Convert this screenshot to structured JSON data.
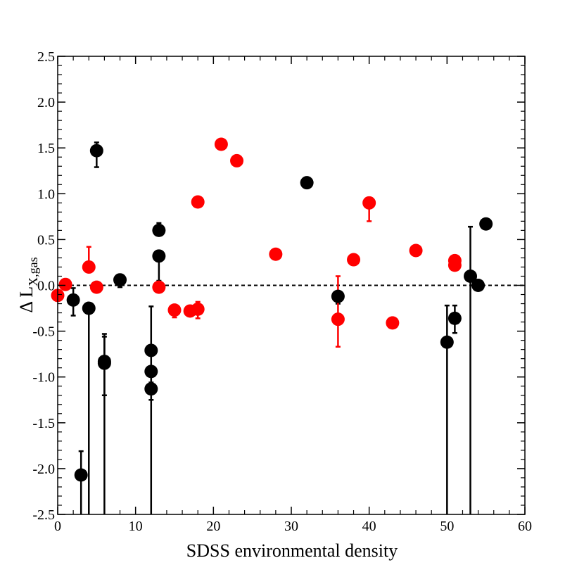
{
  "chart_data": {
    "type": "scatter",
    "title": "",
    "xlabel": "SDSS environmental density",
    "ylabel": {
      "prefix": "Δ L",
      "subscript": "X,gas"
    },
    "xlim": [
      0,
      60
    ],
    "ylim": [
      -2.5,
      2.5
    ],
    "x_ticks": [
      0,
      10,
      20,
      30,
      40,
      50,
      60
    ],
    "x_tick_labels": [
      "0",
      "10",
      "20",
      "30",
      "40",
      "50",
      "60"
    ],
    "y_ticks": [
      -2.5,
      -2.0,
      -1.5,
      -1.0,
      -0.5,
      0.0,
      0.5,
      1.0,
      1.5,
      2.0,
      2.5
    ],
    "y_tick_labels": [
      "-2.5",
      "-2.0",
      "-1.5",
      "-1.0",
      "-0.5",
      "0.0",
      "0.5",
      "1.0",
      "1.5",
      "2.0",
      "2.5"
    ],
    "reference_line": {
      "y": 0.0,
      "style": "dashed"
    },
    "series": [
      {
        "name": "black",
        "color": "#000000",
        "points": [
          {
            "x": 2,
            "y": -0.16,
            "err_low": -0.33,
            "err_high": -0.03
          },
          {
            "x": 3,
            "y": -2.07,
            "err_low": -2.5,
            "err_high": -1.81
          },
          {
            "x": 4,
            "y": -0.25,
            "err_low": -2.5,
            "err_high": -0.25
          },
          {
            "x": 5,
            "y": 1.47,
            "err_low": 1.29,
            "err_high": 1.56
          },
          {
            "x": 6,
            "y": -0.83,
            "err_low": -2.5,
            "err_high": -0.53
          },
          {
            "x": 6,
            "y": -0.85,
            "err_low": -1.2,
            "err_high": -0.56
          },
          {
            "x": 8,
            "y": 0.06,
            "err_low": -0.02,
            "err_high": 0.06
          },
          {
            "x": 12,
            "y": -0.71,
            "err_low": -2.5,
            "err_high": -0.23
          },
          {
            "x": 12,
            "y": -0.94,
            "err_low": -1.06,
            "err_high": -0.94
          },
          {
            "x": 12,
            "y": -1.13,
            "err_low": -1.25,
            "err_high": -1.13
          },
          {
            "x": 13,
            "y": 0.6,
            "err_low": 0.6,
            "err_high": 0.68
          },
          {
            "x": 13,
            "y": 0.32,
            "err_low": 0.05,
            "err_high": 0.32
          },
          {
            "x": 32,
            "y": 1.12,
            "err_low": 1.12,
            "err_high": 1.12
          },
          {
            "x": 36,
            "y": -0.12,
            "err_low": -0.2,
            "err_high": -0.12
          },
          {
            "x": 50,
            "y": -0.62,
            "err_low": -2.5,
            "err_high": -0.22
          },
          {
            "x": 51,
            "y": -0.36,
            "err_low": -0.52,
            "err_high": -0.22
          },
          {
            "x": 53,
            "y": 0.1,
            "err_low": -2.5,
            "err_high": 0.64
          },
          {
            "x": 54,
            "y": 0.0,
            "err_low": 0.0,
            "err_high": 0.0
          },
          {
            "x": 55,
            "y": 0.67,
            "err_low": 0.67,
            "err_high": 0.67
          }
        ]
      },
      {
        "name": "red",
        "color": "#ff0000",
        "points": [
          {
            "x": 0,
            "y": -0.11,
            "err_low": -0.11,
            "err_high": -0.11
          },
          {
            "x": 1,
            "y": 0.01,
            "err_low": 0.01,
            "err_high": 0.01
          },
          {
            "x": 4,
            "y": 0.2,
            "err_low": 0.2,
            "err_high": 0.42
          },
          {
            "x": 5,
            "y": -0.02,
            "err_low": -0.02,
            "err_high": -0.02
          },
          {
            "x": 13,
            "y": -0.02,
            "err_low": -0.02,
            "err_high": -0.02
          },
          {
            "x": 15,
            "y": -0.27,
            "err_low": -0.35,
            "err_high": -0.27
          },
          {
            "x": 17,
            "y": -0.28,
            "err_low": -0.28,
            "err_high": -0.28
          },
          {
            "x": 18,
            "y": -0.26,
            "err_low": -0.36,
            "err_high": -0.18
          },
          {
            "x": 18,
            "y": 0.91,
            "err_low": 0.91,
            "err_high": 0.91
          },
          {
            "x": 21,
            "y": 1.54,
            "err_low": 1.54,
            "err_high": 1.54
          },
          {
            "x": 23,
            "y": 1.36,
            "err_low": 1.36,
            "err_high": 1.36
          },
          {
            "x": 28,
            "y": 0.34,
            "err_low": 0.34,
            "err_high": 0.34
          },
          {
            "x": 36,
            "y": -0.37,
            "err_low": -0.67,
            "err_high": 0.1
          },
          {
            "x": 38,
            "y": 0.28,
            "err_low": 0.28,
            "err_high": 0.28
          },
          {
            "x": 40,
            "y": 0.9,
            "err_low": 0.7,
            "err_high": 0.9
          },
          {
            "x": 43,
            "y": -0.41,
            "err_low": -0.41,
            "err_high": -0.41
          },
          {
            "x": 46,
            "y": 0.38,
            "err_low": 0.38,
            "err_high": 0.38
          },
          {
            "x": 51,
            "y": 0.27,
            "err_low": 0.27,
            "err_high": 0.27
          },
          {
            "x": 51,
            "y": 0.22,
            "err_low": 0.22,
            "err_high": 0.22
          }
        ]
      }
    ]
  }
}
